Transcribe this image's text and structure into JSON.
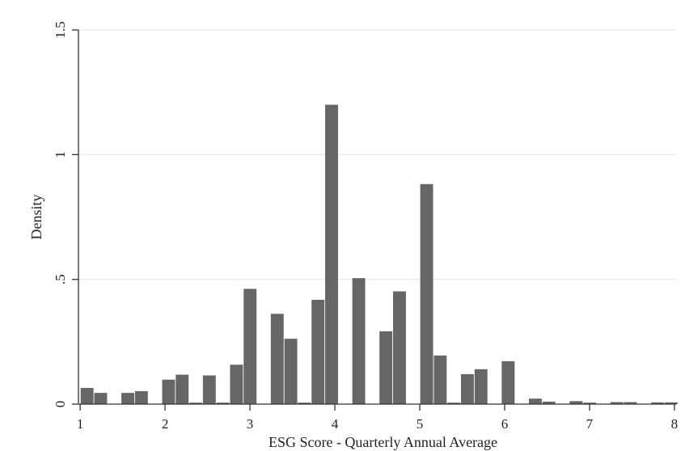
{
  "chart_data": {
    "type": "bar",
    "title": "",
    "xlabel": "ESG Score - Quarterly Annual Average",
    "ylabel": "Density",
    "xlim": [
      0.98,
      8.02
    ],
    "ylim": [
      0,
      1.5
    ],
    "x_ticks": [
      1,
      2,
      3,
      4,
      5,
      6,
      7,
      8
    ],
    "x_tick_labels": [
      "1",
      "2",
      "3",
      "4",
      "5",
      "6",
      "7",
      "8"
    ],
    "y_ticks": [
      0,
      0.5,
      1,
      1.5
    ],
    "y_tick_labels": [
      "0",
      ".5",
      "1",
      "1.5"
    ],
    "grid": "horizontal",
    "bar_color": "#666666",
    "bin_width": 0.163,
    "bins": [
      {
        "start": 1.0,
        "value": 0.065
      },
      {
        "start": 1.16,
        "value": 0.045
      },
      {
        "start": 1.48,
        "value": 0.045
      },
      {
        "start": 1.64,
        "value": 0.052
      },
      {
        "start": 1.96,
        "value": 0.098
      },
      {
        "start": 2.12,
        "value": 0.118
      },
      {
        "start": 2.28,
        "value": 0.006
      },
      {
        "start": 2.44,
        "value": 0.115
      },
      {
        "start": 2.6,
        "value": 0.006
      },
      {
        "start": 2.76,
        "value": 0.158
      },
      {
        "start": 2.92,
        "value": 0.462
      },
      {
        "start": 3.24,
        "value": 0.362
      },
      {
        "start": 3.4,
        "value": 0.262
      },
      {
        "start": 3.56,
        "value": 0.006
      },
      {
        "start": 3.72,
        "value": 0.418
      },
      {
        "start": 3.88,
        "value": 1.2
      },
      {
        "start": 4.2,
        "value": 0.505
      },
      {
        "start": 4.52,
        "value": 0.292
      },
      {
        "start": 4.68,
        "value": 0.452
      },
      {
        "start": 5.0,
        "value": 0.882
      },
      {
        "start": 5.16,
        "value": 0.195
      },
      {
        "start": 5.32,
        "value": 0.006
      },
      {
        "start": 5.48,
        "value": 0.12
      },
      {
        "start": 5.64,
        "value": 0.14
      },
      {
        "start": 5.96,
        "value": 0.172
      },
      {
        "start": 6.28,
        "value": 0.022
      },
      {
        "start": 6.44,
        "value": 0.01
      },
      {
        "start": 6.76,
        "value": 0.012
      },
      {
        "start": 6.92,
        "value": 0.006
      },
      {
        "start": 7.24,
        "value": 0.008
      },
      {
        "start": 7.4,
        "value": 0.008
      },
      {
        "start": 7.72,
        "value": 0.007
      },
      {
        "start": 7.88,
        "value": 0.007
      }
    ]
  }
}
